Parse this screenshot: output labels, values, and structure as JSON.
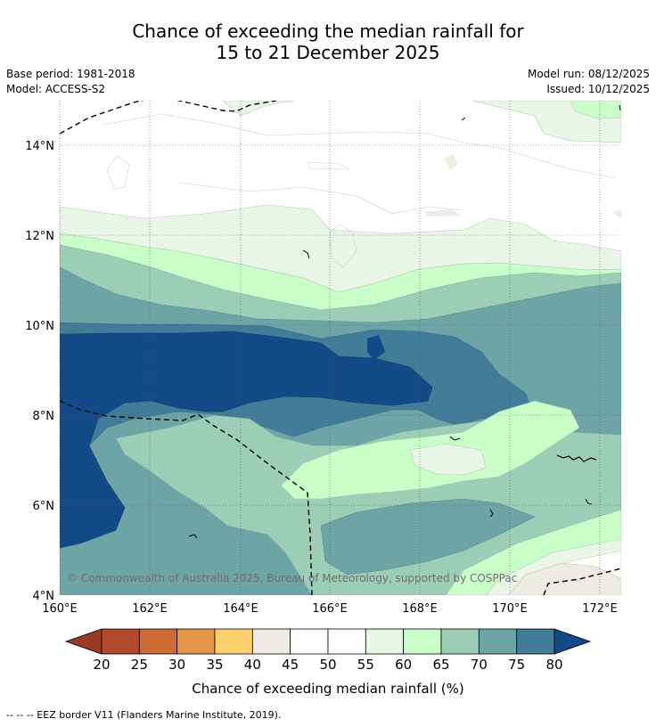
{
  "title": {
    "line1": "Chance of exceeding the median rainfall for",
    "line2": "15 to 21 December 2025"
  },
  "info": {
    "base_period": "Base period: 1981-2018",
    "model": "Model: ACCESS-S2",
    "model_run": "Model run: 08/12/2025",
    "issued": "Issued: 10/12/2025"
  },
  "map": {
    "lat_labels": [
      "14°N",
      "12°N",
      "10°N",
      "8°N",
      "6°N",
      "4°N"
    ],
    "lon_labels": [
      "160°E",
      "162°E",
      "164°E",
      "166°E",
      "168°E",
      "170°E",
      "172°E"
    ],
    "copyright": "© Commonwealth of Australia 2025, Bureau of Meteorology, supported by COSPPac"
  },
  "colorbar": {
    "ticks": [
      "20",
      "25",
      "30",
      "35",
      "40",
      "45",
      "50",
      "55",
      "60",
      "65",
      "70",
      "75",
      "80"
    ],
    "colors": [
      "#b1492a",
      "#cf6a35",
      "#e19547",
      "#fdd16d",
      "#eeeae4",
      "#ffffff",
      "#ffffff",
      "#e8f5e7",
      "#c9fec9",
      "#9bcdb7",
      "#6da4a5",
      "#417c99"
    ],
    "low_color": "#9b3a22",
    "high_color": "#124b87",
    "label": "Chance of exceeding median rainfall (%)"
  },
  "footer": "--  --  -- EEZ border V11 (Flanders Marine Institute, 2019)."
}
